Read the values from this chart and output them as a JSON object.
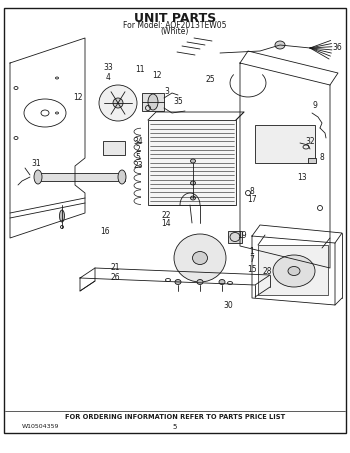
{
  "title_line1": "UNIT PARTS",
  "title_line2": "For Model: AQF2013TEW05",
  "title_line3": "(White)",
  "footer_text": "FOR ORDERING INFORMATION REFER TO PARTS PRICE LIST",
  "doc_number": "W10504359",
  "page_number": "5",
  "bg_color": "#ffffff",
  "dark": "#1a1a1a",
  "gray_fill": "#d8d8d8",
  "light_fill": "#eeeeee",
  "title_fontsize": 9,
  "subtitle_fontsize": 5.5,
  "footer_fontsize": 4.8,
  "label_fontsize": 5.5
}
